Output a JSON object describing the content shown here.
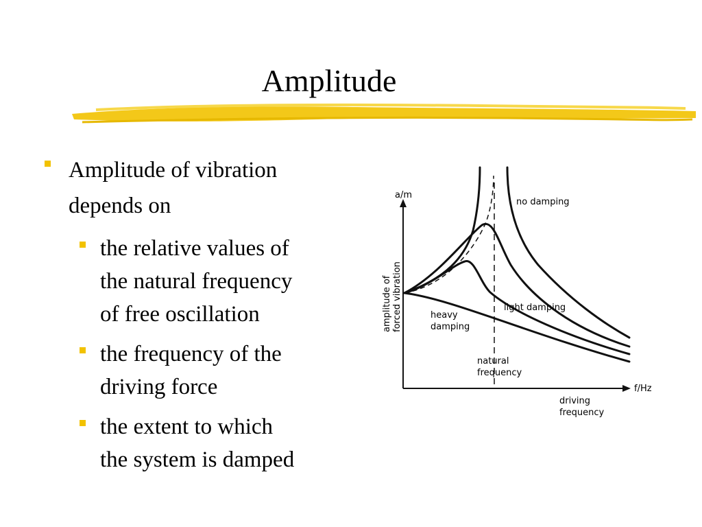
{
  "slide": {
    "title": "Amplitude",
    "bullets": [
      {
        "text_line1": "Amplitude of vibration",
        "text_line2": "depends on"
      },
      {
        "lines": [
          "the relative values of",
          "the natural frequency",
          "of free oscillation"
        ]
      },
      {
        "lines": [
          "the frequency of the",
          "driving force"
        ]
      },
      {
        "lines": [
          "the extent to which",
          "the system is damped"
        ]
      }
    ]
  },
  "colors": {
    "accent": "#f2c200",
    "text": "#000000"
  },
  "figure": {
    "y_unit": "a/m",
    "y_label_line1": "amplitude of",
    "y_label_line2": "forced vibration",
    "x_unit": "f/Hz",
    "x_label_line1": "driving",
    "x_label_line2": "frequency",
    "natural_line1": "natural",
    "natural_line2": "frequency",
    "no_damping": "no damping",
    "light_damping": "light damping",
    "heavy_line1": "heavy",
    "heavy_line2": "damping"
  }
}
